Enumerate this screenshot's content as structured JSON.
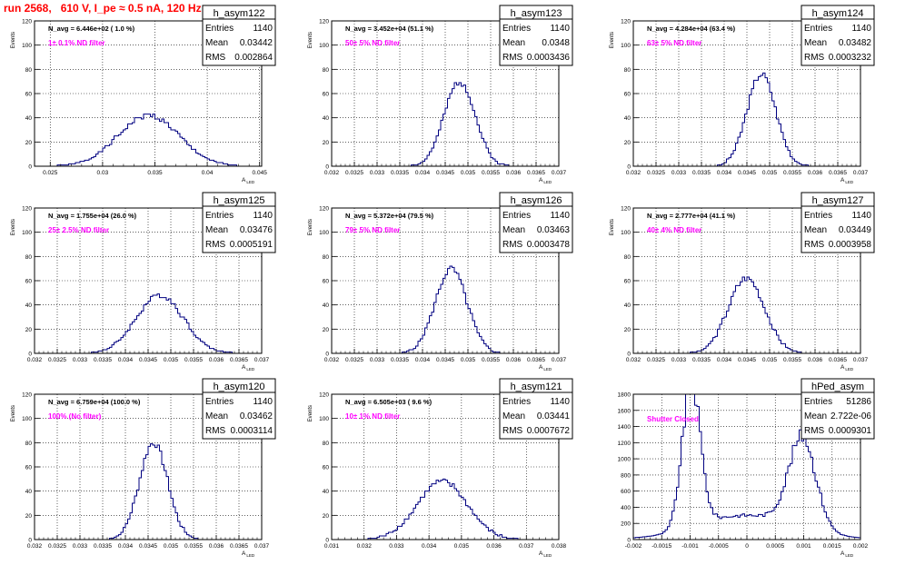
{
  "title": "run 2568,   610 V, I_pe ≈ 0.5 nA, 120 Hz",
  "colors": {
    "hist": "#000080",
    "note": "#ff00ff",
    "title": "#ff0000",
    "grid": "#000000"
  },
  "chart_data": [
    {
      "type": "bar",
      "name": "h_asym122",
      "entries": "1140",
      "mean": "0.03442",
      "rms": "0.002864",
      "navg": "N_avg = 6.446e+02 ( 1.0 %)",
      "note": "1± 0.1% ND filter",
      "ylabel": "Events",
      "xlabel": "A",
      "xlabel_sub": "LED",
      "xlim": [
        0.0235,
        0.0452
      ],
      "ylim": [
        0,
        120
      ],
      "xticks": [
        "0.025",
        "0.03",
        "0.035",
        "0.04",
        "0.045"
      ],
      "xtick_vals": [
        0.025,
        0.03,
        0.035,
        0.04,
        0.045
      ],
      "yticks": [
        "0",
        "20",
        "40",
        "60",
        "80",
        "100",
        "120"
      ],
      "ytick_vals": [
        0,
        20,
        40,
        60,
        80,
        100,
        120
      ],
      "peak_x": 0.0344,
      "peak_y": 42,
      "width": 0.0029,
      "bins": 100,
      "noise_seed": 1
    },
    {
      "type": "bar",
      "name": "h_asym123",
      "entries": "1140",
      "mean": "0.0348",
      "rms": "0.0003436",
      "navg": "N_avg = 3.452e+04 (51.1 %)",
      "note": "50± 5% ND filter",
      "ylabel": "Events",
      "xlabel": "A",
      "xlabel_sub": "LED",
      "xlim": [
        0.032,
        0.037
      ],
      "ylim": [
        0,
        120
      ],
      "xticks": [
        "0.032",
        "0.0325",
        "0.033",
        "0.0335",
        "0.034",
        "0.0345",
        "0.035",
        "0.0355",
        "0.036",
        "0.0365",
        "0.037"
      ],
      "xtick_vals": [
        0.032,
        0.0325,
        0.033,
        0.0335,
        0.034,
        0.0345,
        0.035,
        0.0355,
        0.036,
        0.0365,
        0.037
      ],
      "yticks": [
        "0",
        "20",
        "40",
        "60",
        "80",
        "100",
        "120"
      ],
      "ytick_vals": [
        0,
        20,
        40,
        60,
        80,
        100,
        120
      ],
      "peak_x": 0.03482,
      "peak_y": 70,
      "width": 0.00034,
      "bins": 100,
      "noise_seed": 2
    },
    {
      "type": "bar",
      "name": "h_asym124",
      "entries": "1140",
      "mean": "0.03482",
      "rms": "0.0003232",
      "navg": "N_avg = 4.284e+04 (63.4 %)",
      "note": "63± 5% ND filter",
      "ylabel": "Events",
      "xlabel": "A",
      "xlabel_sub": "LED",
      "xlim": [
        0.032,
        0.037
      ],
      "ylim": [
        0,
        120
      ],
      "xticks": [
        "0.032",
        "0.0325",
        "0.033",
        "0.0335",
        "0.034",
        "0.0345",
        "0.035",
        "0.0355",
        "0.036",
        "0.0365",
        "0.037"
      ],
      "xtick_vals": [
        0.032,
        0.0325,
        0.033,
        0.0335,
        0.034,
        0.0345,
        0.035,
        0.0355,
        0.036,
        0.0365,
        0.037
      ],
      "yticks": [
        "0",
        "20",
        "40",
        "60",
        "80",
        "100",
        "120"
      ],
      "ytick_vals": [
        0,
        20,
        40,
        60,
        80,
        100,
        120
      ],
      "peak_x": 0.03482,
      "peak_y": 76,
      "width": 0.00032,
      "bins": 100,
      "noise_seed": 3
    },
    {
      "type": "bar",
      "name": "h_asym125",
      "entries": "1140",
      "mean": "0.03476",
      "rms": "0.0005191",
      "navg": "N_avg = 1.755e+04 (26.0 %)",
      "note": "25± 2.5% ND filter",
      "ylabel": "Events",
      "xlabel": "A",
      "xlabel_sub": "LED",
      "xlim": [
        0.032,
        0.037
      ],
      "ylim": [
        0,
        120
      ],
      "xticks": [
        "0.032",
        "0.0325",
        "0.033",
        "0.0335",
        "0.034",
        "0.0345",
        "0.035",
        "0.0355",
        "0.036",
        "0.0365",
        "0.037"
      ],
      "xtick_vals": [
        0.032,
        0.0325,
        0.033,
        0.0335,
        0.034,
        0.0345,
        0.035,
        0.0355,
        0.036,
        0.0365,
        0.037
      ],
      "yticks": [
        "0",
        "20",
        "40",
        "60",
        "80",
        "100",
        "120"
      ],
      "ytick_vals": [
        0,
        20,
        40,
        60,
        80,
        100,
        120
      ],
      "peak_x": 0.03476,
      "peak_y": 48,
      "width": 0.00052,
      "bins": 100,
      "noise_seed": 4
    },
    {
      "type": "bar",
      "name": "h_asym126",
      "entries": "1140",
      "mean": "0.03463",
      "rms": "0.0003478",
      "navg": "N_avg = 5.372e+04 (79.5 %)",
      "note": "79± 5% ND filter",
      "ylabel": "Events",
      "xlabel": "A",
      "xlabel_sub": "LED",
      "xlim": [
        0.032,
        0.037
      ],
      "ylim": [
        0,
        120
      ],
      "xticks": [
        "0.032",
        "0.0325",
        "0.033",
        "0.0335",
        "0.034",
        "0.0345",
        "0.035",
        "0.0355",
        "0.036",
        "0.0365",
        "0.037"
      ],
      "xtick_vals": [
        0.032,
        0.0325,
        0.033,
        0.0335,
        0.034,
        0.0345,
        0.035,
        0.0355,
        0.036,
        0.0365,
        0.037
      ],
      "yticks": [
        "0",
        "20",
        "40",
        "60",
        "80",
        "100",
        "120"
      ],
      "ytick_vals": [
        0,
        20,
        40,
        60,
        80,
        100,
        120
      ],
      "peak_x": 0.03463,
      "peak_y": 70,
      "width": 0.00035,
      "bins": 100,
      "noise_seed": 5
    },
    {
      "type": "bar",
      "name": "h_asym127",
      "entries": "1140",
      "mean": "0.03449",
      "rms": "0.0003958",
      "navg": "N_avg = 2.777e+04 (41.1 %)",
      "note": "40± 4% ND filter",
      "ylabel": "Events",
      "xlabel": "A",
      "xlabel_sub": "LED",
      "xlim": [
        0.032,
        0.037
      ],
      "ylim": [
        0,
        120
      ],
      "xticks": [
        "0.032",
        "0.0325",
        "0.033",
        "0.0335",
        "0.034",
        "0.0345",
        "0.035",
        "0.0355",
        "0.036",
        "0.0365",
        "0.037"
      ],
      "xtick_vals": [
        0.032,
        0.0325,
        0.033,
        0.0335,
        0.034,
        0.0345,
        0.035,
        0.0355,
        0.036,
        0.0365,
        0.037
      ],
      "yticks": [
        "0",
        "20",
        "40",
        "60",
        "80",
        "100",
        "120"
      ],
      "ytick_vals": [
        0,
        20,
        40,
        60,
        80,
        100,
        120
      ],
      "peak_x": 0.03449,
      "peak_y": 62,
      "width": 0.0004,
      "bins": 100,
      "noise_seed": 6
    },
    {
      "type": "bar",
      "name": "h_asym120",
      "entries": "1140",
      "mean": "0.03462",
      "rms": "0.0003114",
      "navg": "N_avg = 6.759e+04 (100.0 %)",
      "note": "100% (No filter)",
      "ylabel": "Events",
      "xlabel": "A",
      "xlabel_sub": "LED",
      "xlim": [
        0.032,
        0.037
      ],
      "ylim": [
        0,
        120
      ],
      "xticks": [
        "0.032",
        "0.0325",
        "0.033",
        "0.0335",
        "0.034",
        "0.0345",
        "0.035",
        "0.0355",
        "0.036",
        "0.0365",
        "0.037"
      ],
      "xtick_vals": [
        0.032,
        0.0325,
        0.033,
        0.0335,
        0.034,
        0.0345,
        0.035,
        0.0355,
        0.036,
        0.0365,
        0.037
      ],
      "yticks": [
        "0",
        "20",
        "40",
        "60",
        "80",
        "100",
        "120"
      ],
      "ytick_vals": [
        0,
        20,
        40,
        60,
        80,
        100,
        120
      ],
      "peak_x": 0.03462,
      "peak_y": 80,
      "width": 0.00031,
      "bins": 100,
      "noise_seed": 7
    },
    {
      "type": "bar",
      "name": "h_asym121",
      "entries": "1140",
      "mean": "0.03441",
      "rms": "0.0007672",
      "navg": "N_avg = 6.505e+03 ( 9.6 %)",
      "note": "10± 1% ND filter",
      "ylabel": "Events",
      "xlabel": "A",
      "xlabel_sub": "LED",
      "xlim": [
        0.031,
        0.038
      ],
      "ylim": [
        0,
        120
      ],
      "xticks": [
        "0.031",
        "0.032",
        "0.033",
        "0.034",
        "0.035",
        "0.036",
        "0.037",
        "0.038"
      ],
      "xtick_vals": [
        0.031,
        0.032,
        0.033,
        0.034,
        0.035,
        0.036,
        0.037,
        0.038
      ],
      "yticks": [
        "0",
        "20",
        "40",
        "60",
        "80",
        "100",
        "120"
      ],
      "ytick_vals": [
        0,
        20,
        40,
        60,
        80,
        100,
        120
      ],
      "peak_x": 0.03441,
      "peak_y": 48,
      "width": 0.00077,
      "bins": 100,
      "noise_seed": 8
    },
    {
      "type": "bar",
      "name": "hPed_asym",
      "entries": "51286",
      "mean": "2.722e-06",
      "rms": "0.0009301",
      "navg": "",
      "note": "Shutter Closed",
      "ylabel": "",
      "xlabel": "A",
      "xlabel_sub": "LED",
      "xlim": [
        -0.002,
        0.002
      ],
      "ylim": [
        0,
        1800
      ],
      "xticks": [
        "-0.002",
        "-0.0015",
        "-0.001",
        "-0.0005",
        "0",
        "0.0005",
        "0.001",
        "0.0015",
        "0.002"
      ],
      "xtick_vals": [
        -0.002,
        -0.0015,
        -0.001,
        -0.0005,
        0,
        0.0005,
        0.001,
        0.0015,
        0.002
      ],
      "yticks": [
        "0",
        "200",
        "400",
        "600",
        "800",
        "1000",
        "1200",
        "1400",
        "1600",
        "1800"
      ],
      "ytick_vals": [
        0,
        200,
        400,
        600,
        800,
        1000,
        1200,
        1400,
        1600,
        1800
      ],
      "bimodal": true,
      "bins": 100,
      "noise_seed": 9
    }
  ]
}
